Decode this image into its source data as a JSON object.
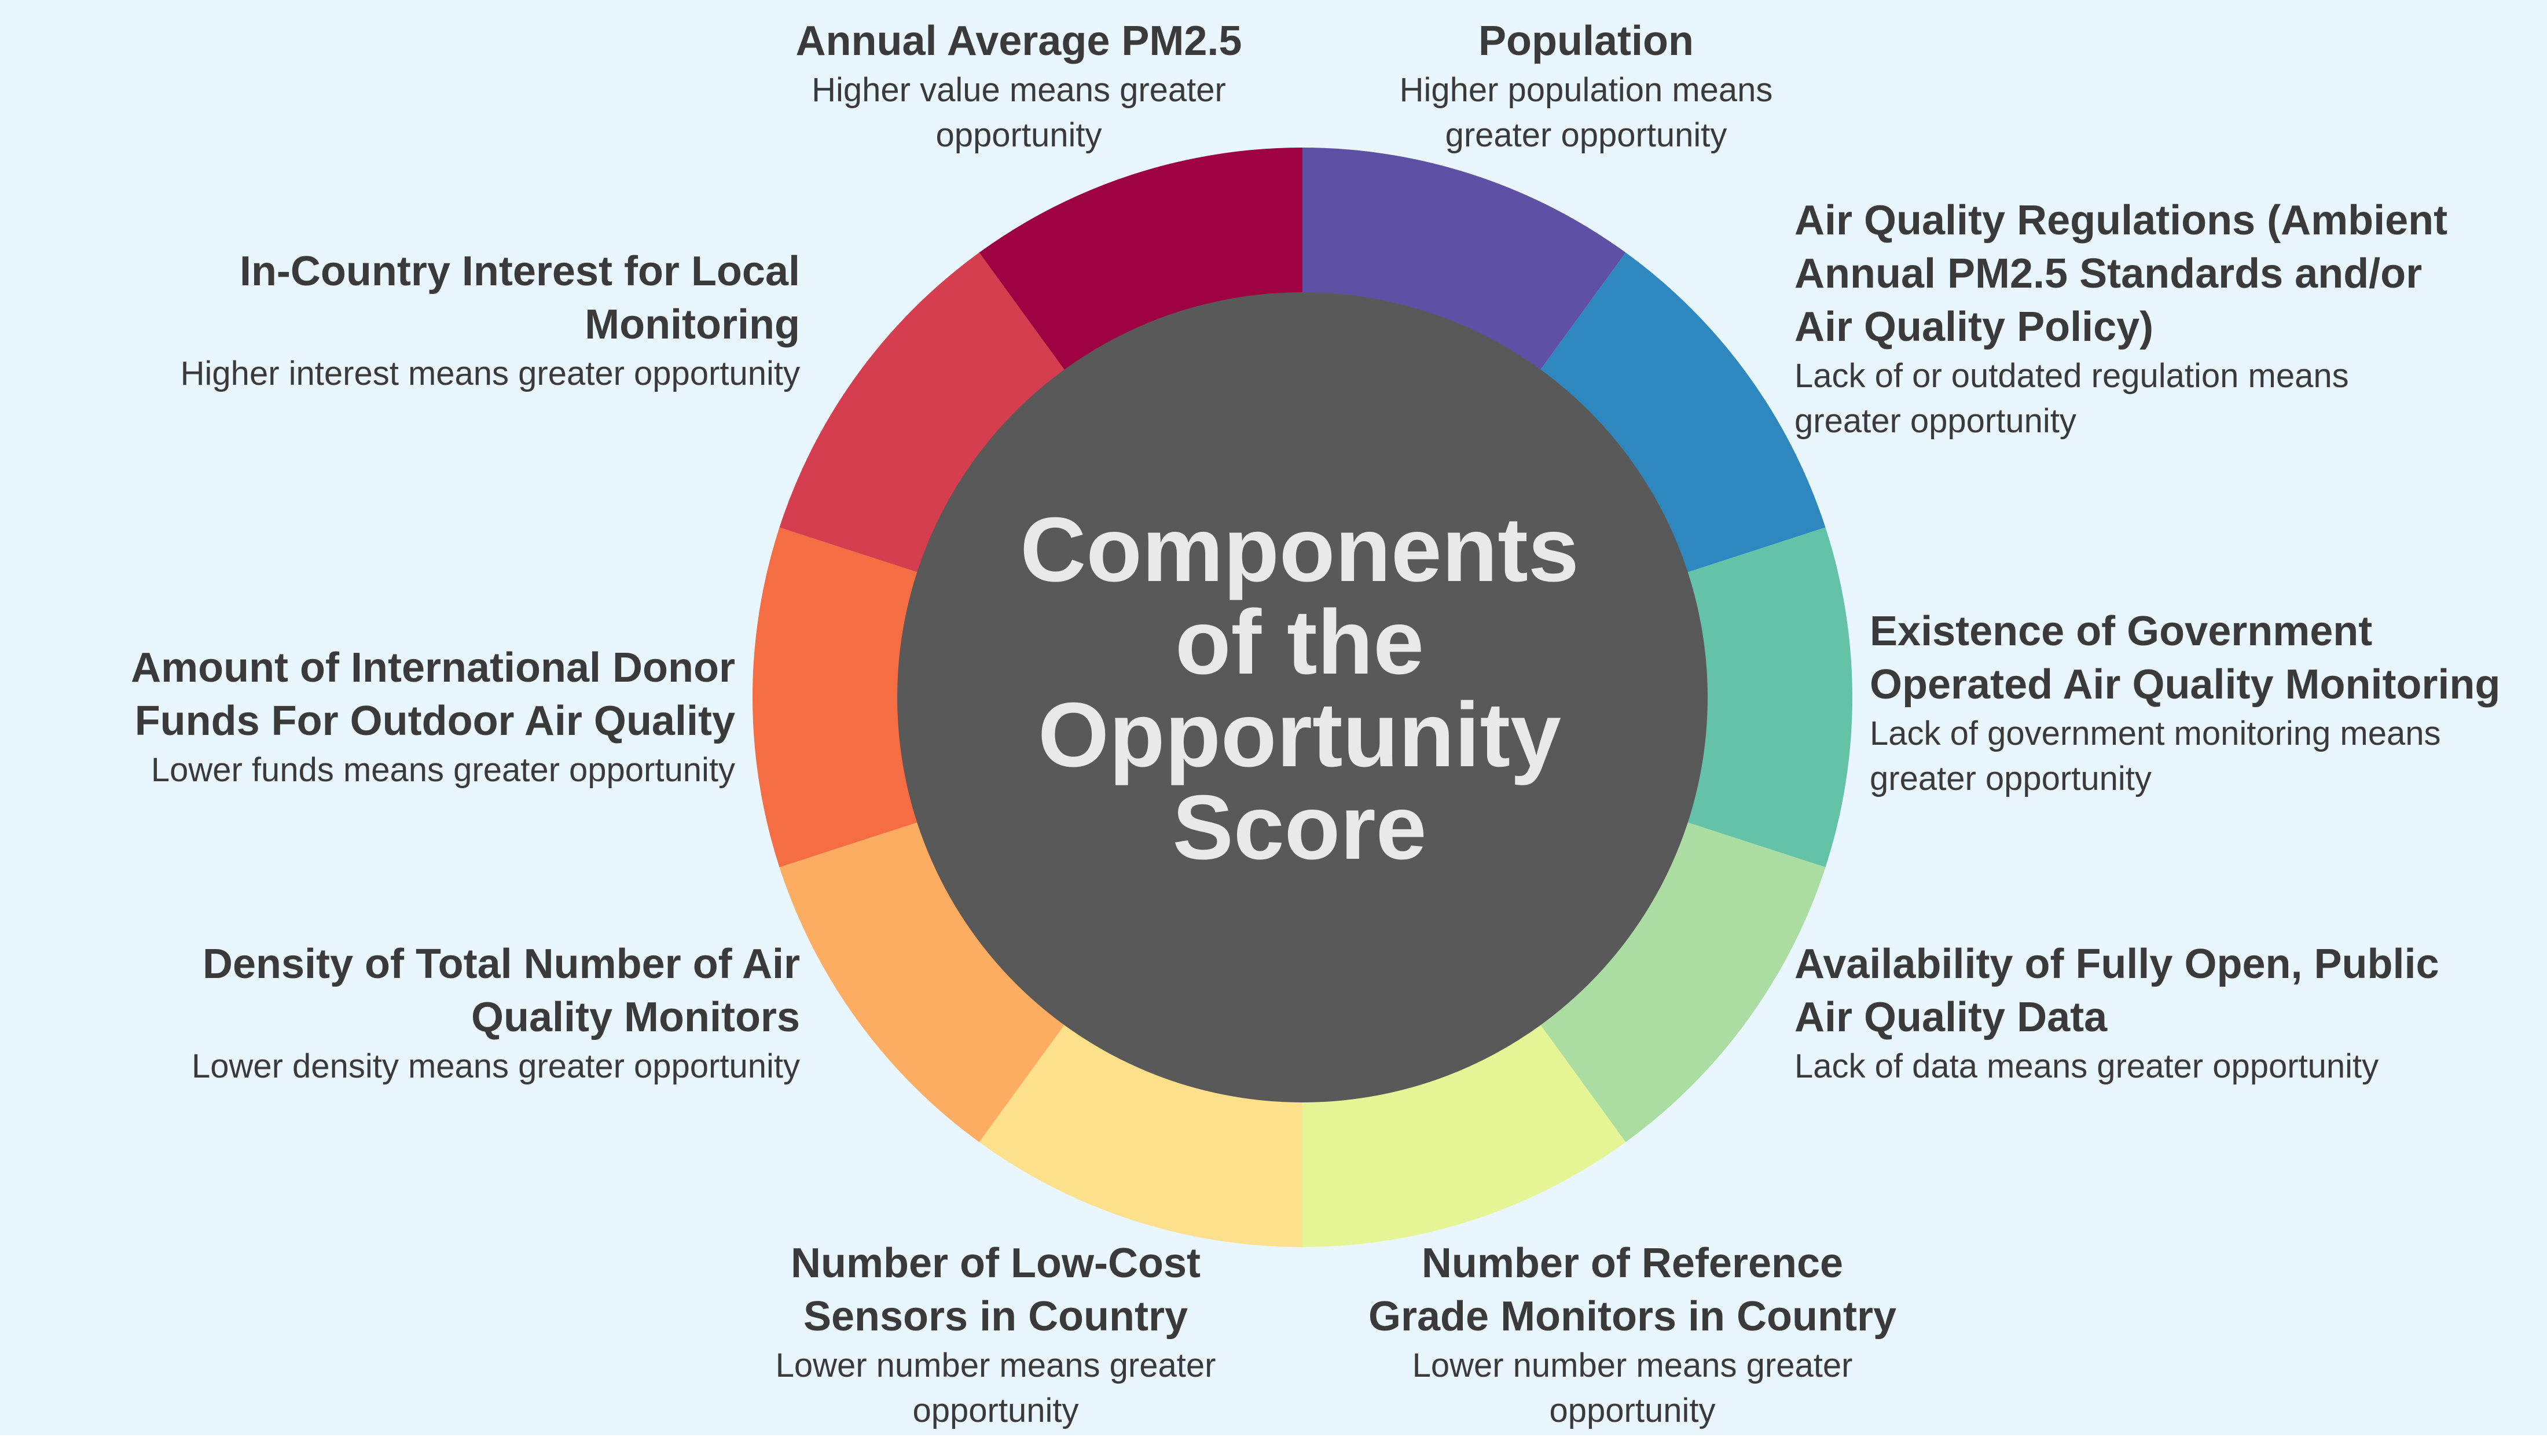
{
  "center_title": [
    "Components",
    "of the",
    "Opportunity",
    "Score"
  ],
  "colors": {
    "background": "#eaf6fd",
    "center": "#595959",
    "center_text": "#e9e9e9",
    "text": "#3a3a3a"
  },
  "segments": [
    {
      "id": "population",
      "color": "#5e51a5"
    },
    {
      "id": "regulations",
      "color": "#2f87c0"
    },
    {
      "id": "gov-monitoring",
      "color": "#64c3a7"
    },
    {
      "id": "open-data",
      "color": "#abdda3"
    },
    {
      "id": "reference-monitors",
      "color": "#e5f595"
    },
    {
      "id": "low-cost-sensors",
      "color": "#fde08b"
    },
    {
      "id": "monitor-density",
      "color": "#fdad61"
    },
    {
      "id": "donor-funds",
      "color": "#f46d43"
    },
    {
      "id": "in-country-interest",
      "color": "#d53e4f"
    },
    {
      "id": "pm25",
      "color": "#9e0142"
    }
  ],
  "labels": {
    "pm25": {
      "title": [
        "Annual Average PM2.5"
      ],
      "desc": [
        "Higher value means greater",
        "opportunity"
      ]
    },
    "population": {
      "title": [
        "Population"
      ],
      "desc": [
        "Higher population means",
        "greater opportunity"
      ]
    },
    "regulations": {
      "title": [
        "Air Quality Regulations (Ambient",
        "Annual PM2.5 Standards and/or",
        "Air Quality Policy)"
      ],
      "desc": [
        "Lack of or outdated regulation means",
        "greater opportunity"
      ]
    },
    "in_country_interest": {
      "title": [
        "In-Country Interest for Local",
        "Monitoring"
      ],
      "desc": [
        "Higher interest means greater  opportunity"
      ]
    },
    "gov_monitoring": {
      "title": [
        "Existence of Government",
        "Operated Air Quality Monitoring"
      ],
      "desc": [
        "Lack of government monitoring means",
        "greater opportunity"
      ]
    },
    "donor_funds": {
      "title": [
        "Amount of International Donor",
        "Funds For Outdoor Air Quality"
      ],
      "desc": [
        "Lower funds means greater opportunity"
      ]
    },
    "monitor_density": {
      "title": [
        "Density of Total Number of Air",
        "Quality Monitors"
      ],
      "desc": [
        "Lower density means greater opportunity"
      ]
    },
    "open_data": {
      "title": [
        "Availability of Fully Open, Public",
        "Air Quality Data"
      ],
      "desc": [
        "Lack of data means greater opportunity"
      ]
    },
    "low_cost_sensors": {
      "title": [
        "Number of Low-Cost",
        "Sensors in Country"
      ],
      "desc": [
        "Lower number means greater",
        "opportunity"
      ]
    },
    "reference_monitors": {
      "title": [
        "Number of Reference",
        "Grade Monitors in Country"
      ],
      "desc": [
        "Lower number means greater",
        "opportunity"
      ]
    }
  }
}
